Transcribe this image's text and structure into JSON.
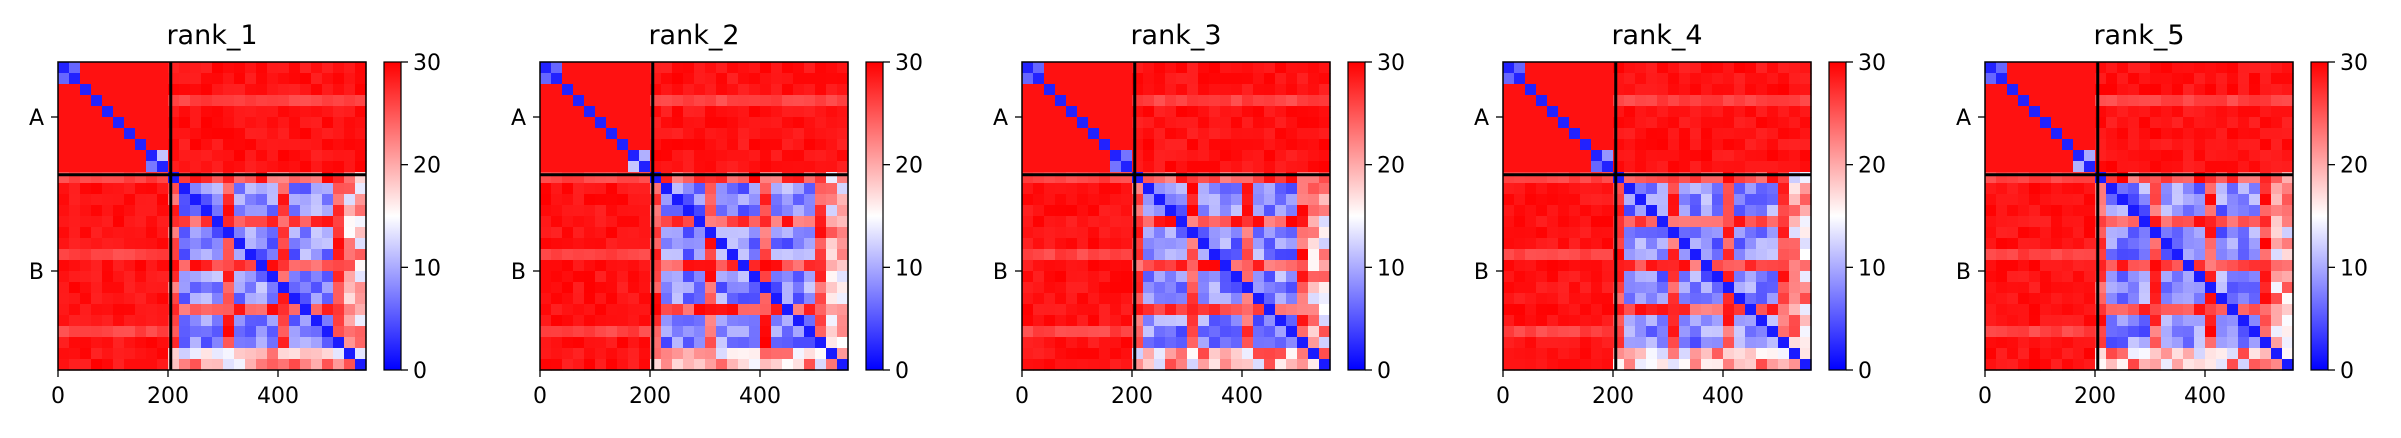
{
  "chart_data": [
    {
      "type": "heatmap",
      "title": "rank_1",
      "colorbar": {
        "min": 0,
        "max": 30,
        "ticks": [
          0,
          10,
          20,
          30
        ],
        "colormap": "bwr"
      },
      "x_ticks": [
        0,
        200,
        400
      ],
      "x_range": [
        0,
        560
      ],
      "y_range": [
        0,
        560
      ],
      "y_ticks": [
        {
          "label": "A",
          "value": 100
        },
        {
          "label": "B",
          "value": 380
        }
      ],
      "chain_boundary": 205,
      "colors": {
        "low": "#0000ff",
        "mid": "#ffffff",
        "high": "#ff0000"
      }
    },
    {
      "type": "heatmap",
      "title": "rank_2",
      "colorbar": {
        "min": 0,
        "max": 30,
        "ticks": [
          0,
          10,
          20,
          30
        ],
        "colormap": "bwr"
      },
      "x_ticks": [
        0,
        200,
        400
      ],
      "x_range": [
        0,
        560
      ],
      "y_range": [
        0,
        560
      ],
      "y_ticks": [
        {
          "label": "A",
          "value": 100
        },
        {
          "label": "B",
          "value": 380
        }
      ],
      "chain_boundary": 205,
      "colors": {
        "low": "#0000ff",
        "mid": "#ffffff",
        "high": "#ff0000"
      }
    },
    {
      "type": "heatmap",
      "title": "rank_3",
      "colorbar": {
        "min": 0,
        "max": 30,
        "ticks": [
          0,
          10,
          20,
          30
        ],
        "colormap": "bwr"
      },
      "x_ticks": [
        0,
        200,
        400
      ],
      "x_range": [
        0,
        560
      ],
      "y_range": [
        0,
        560
      ],
      "y_ticks": [
        {
          "label": "A",
          "value": 100
        },
        {
          "label": "B",
          "value": 380
        }
      ],
      "chain_boundary": 205,
      "colors": {
        "low": "#0000ff",
        "mid": "#ffffff",
        "high": "#ff0000"
      }
    },
    {
      "type": "heatmap",
      "title": "rank_4",
      "colorbar": {
        "min": 0,
        "max": 30,
        "ticks": [
          0,
          10,
          20,
          30
        ],
        "colormap": "bwr"
      },
      "x_ticks": [
        0,
        200,
        400
      ],
      "x_range": [
        0,
        560
      ],
      "y_range": [
        0,
        560
      ],
      "y_ticks": [
        {
          "label": "A",
          "value": 100
        },
        {
          "label": "B",
          "value": 380
        }
      ],
      "chain_boundary": 205,
      "colors": {
        "low": "#0000ff",
        "mid": "#ffffff",
        "high": "#ff0000"
      }
    },
    {
      "type": "heatmap",
      "title": "rank_5",
      "colorbar": {
        "min": 0,
        "max": 30,
        "ticks": [
          0,
          10,
          20,
          30
        ],
        "colormap": "bwr"
      },
      "x_ticks": [
        0,
        200,
        400
      ],
      "x_range": [
        0,
        560
      ],
      "y_range": [
        0,
        560
      ],
      "y_ticks": [
        {
          "label": "A",
          "value": 100
        },
        {
          "label": "B",
          "value": 380
        }
      ],
      "chain_boundary": 205,
      "colors": {
        "low": "#0000ff",
        "mid": "#ffffff",
        "high": "#ff0000"
      }
    }
  ]
}
